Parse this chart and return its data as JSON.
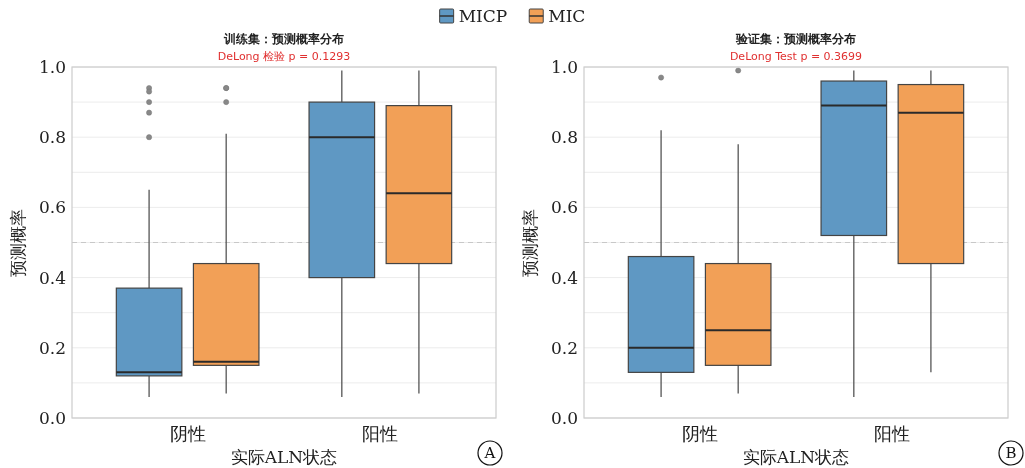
{
  "chart_data": [
    {
      "type": "box",
      "title": "训练集：预测概率分布",
      "subtitle": "DeLong 检验 p = 0.1293",
      "xlabel": "实际ALN状态",
      "ylabel": "预测概率",
      "categories": [
        "阴性",
        "阳性"
      ],
      "series": [
        {
          "name": "MICP",
          "color": "#5f98c3",
          "boxes": [
            {
              "low": 0.06,
              "q1": 0.12,
              "median": 0.13,
              "q3": 0.37,
              "high": 0.65,
              "outliers": [
                0.94,
                0.93,
                0.9,
                0.87,
                0.8
              ]
            },
            {
              "low": 0.06,
              "q1": 0.4,
              "median": 0.8,
              "q3": 0.9,
              "high": 0.99
            }
          ]
        },
        {
          "name": "MIC",
          "color": "#f2a057",
          "boxes": [
            {
              "low": 0.07,
              "q1": 0.15,
              "median": 0.16,
              "q3": 0.44,
              "high": 0.81,
              "outliers": [
                0.94,
                0.94,
                0.9
              ]
            },
            {
              "low": 0.07,
              "q1": 0.44,
              "median": 0.64,
              "q3": 0.89,
              "high": 0.99
            }
          ]
        }
      ],
      "ylim": [
        0,
        1
      ],
      "yticks": [
        {
          "value": 0,
          "label": "0.0"
        },
        {
          "value": 0.1,
          "label": null
        },
        0.2,
        {
          "value": 0.3,
          "label": null
        },
        0.4,
        {
          "value": 0.5,
          "label": null
        },
        0.6,
        {
          "value": 0.7,
          "label": null
        },
        0.8,
        {
          "value": 0.9,
          "label": null
        },
        {
          "value": 1,
          "label": "1.0"
        }
      ],
      "grid": "y",
      "legend": "top",
      "ref_lines": [
        {
          "axis": "y",
          "value": 0.5,
          "color": "#c8c8c8",
          "line_style": "dashed"
        }
      ],
      "annotations": [
        "A"
      ]
    },
    {
      "type": "box",
      "title": "验证集：预测概率分布",
      "subtitle": "DeLong Test p = 0.3699",
      "xlabel": "实际ALN状态",
      "ylabel": "预测概率",
      "categories": [
        "阴性",
        "阳性"
      ],
      "series": [
        {
          "color": "#5f98c3",
          "boxes": [
            {
              "low": 0.06,
              "q1": 0.13,
              "median": 0.2,
              "q3": 0.46,
              "high": 0.82,
              "outliers": [
                0.97
              ]
            },
            {
              "low": 0.06,
              "q1": 0.52,
              "median": 0.89,
              "q3": 0.96,
              "high": 0.99
            }
          ]
        },
        {
          "color": "#f2a057",
          "boxes": [
            {
              "low": 0.07,
              "q1": 0.15,
              "median": 0.25,
              "q3": 0.44,
              "high": 0.78,
              "outliers": [
                0.99
              ]
            },
            {
              "low": 0.13,
              "q1": 0.44,
              "median": 0.87,
              "q3": 0.95,
              "high": 0.99
            }
          ]
        }
      ],
      "ylim": [
        0,
        1
      ],
      "yticks": [
        {
          "value": 0,
          "label": "0.0"
        },
        {
          "value": 0.1,
          "label": null
        },
        0.2,
        {
          "value": 0.3,
          "label": null
        },
        0.4,
        {
          "value": 0.5,
          "label": null
        },
        0.6,
        {
          "value": 0.7,
          "label": null
        },
        0.8,
        {
          "value": 0.9,
          "label": null
        },
        {
          "value": 1,
          "label": "1.0"
        }
      ],
      "grid": "y",
      "ref_lines": [
        {
          "axis": "y",
          "value": 0.5,
          "color": "#c8c8c8",
          "line_style": "dashed"
        }
      ],
      "annotations": [
        "B"
      ]
    }
  ]
}
